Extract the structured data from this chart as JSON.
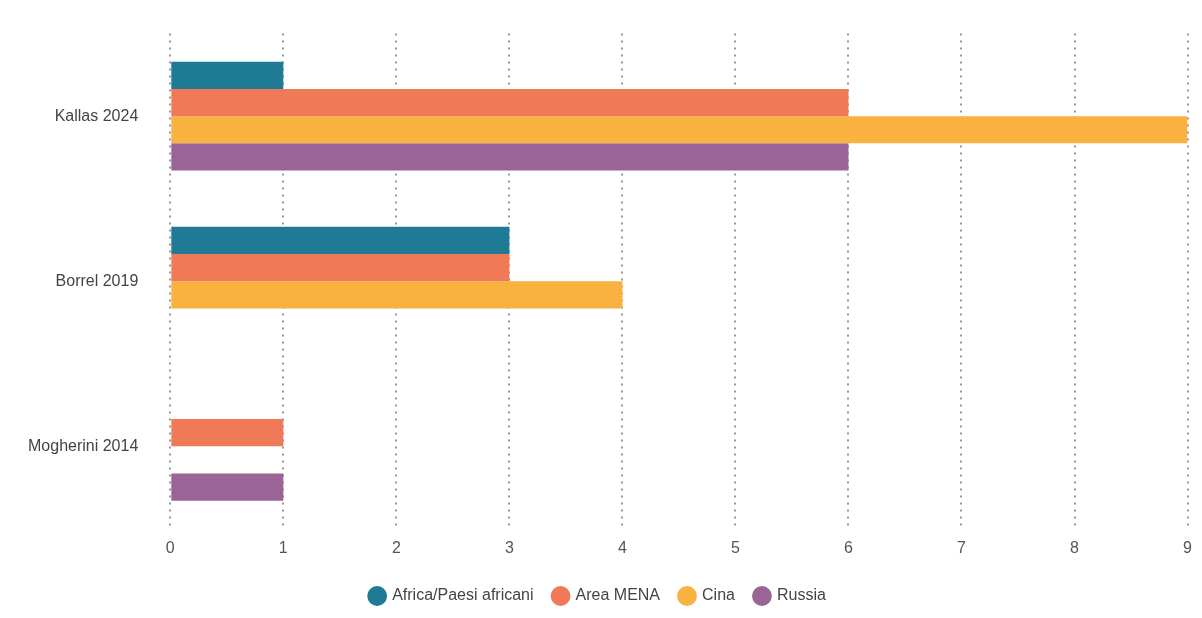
{
  "chart_data": {
    "type": "bar",
    "orientation": "horizontal",
    "categories": [
      "Kallas 2024",
      "Borrel 2019",
      "Mogherini 2014"
    ],
    "series": [
      {
        "name": "Africa/Paesi africani",
        "color": "#1f7a96",
        "values": [
          1,
          3,
          null
        ]
      },
      {
        "name": "Area MENA",
        "color": "#f07a58",
        "values": [
          6,
          3,
          1
        ]
      },
      {
        "name": "Cina",
        "color": "#f9b13f",
        "values": [
          9,
          4,
          null
        ]
      },
      {
        "name": "Russia",
        "color": "#9b6497",
        "values": [
          6,
          null,
          1
        ]
      }
    ],
    "xlim": [
      0,
      9
    ],
    "xticks": [
      0,
      1,
      2,
      3,
      4,
      5,
      6,
      7,
      8,
      9
    ],
    "grid": "x",
    "legend": "bottom"
  }
}
